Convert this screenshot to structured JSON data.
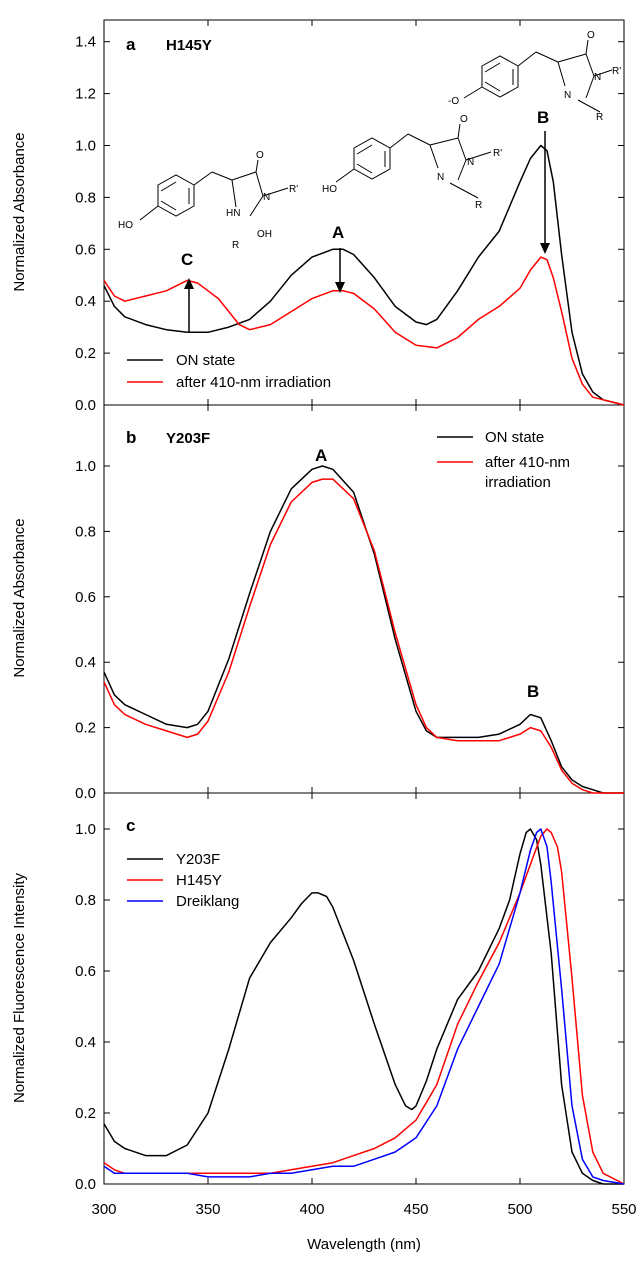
{
  "figure": {
    "xlabel": "Wavelength (nm)",
    "xticks": [
      "300",
      "350",
      "400",
      "450",
      "500",
      "550"
    ]
  },
  "chart_data": [
    {
      "type": "line",
      "panel": "a",
      "title": "H145Y",
      "ylabel": "Normalized Absorbance",
      "xlim": [
        300,
        550
      ],
      "ylim": [
        0,
        1.45
      ],
      "yticks": [
        "0.0",
        "0.2",
        "0.4",
        "0.6",
        "0.8",
        "1.0",
        "1.2",
        "1.4"
      ],
      "legend": "bottom-left",
      "series": [
        {
          "name": "ON state",
          "color": "#000000",
          "x": [
            300,
            305,
            310,
            320,
            330,
            340,
            350,
            360,
            370,
            380,
            390,
            400,
            410,
            415,
            420,
            430,
            440,
            450,
            455,
            460,
            470,
            480,
            490,
            500,
            505,
            510,
            513,
            516,
            520,
            525,
            530,
            535,
            540,
            545,
            550
          ],
          "y": [
            0.46,
            0.38,
            0.34,
            0.31,
            0.29,
            0.28,
            0.28,
            0.3,
            0.33,
            0.4,
            0.5,
            0.57,
            0.6,
            0.6,
            0.58,
            0.49,
            0.38,
            0.32,
            0.31,
            0.33,
            0.44,
            0.57,
            0.67,
            0.86,
            0.95,
            1.0,
            0.98,
            0.86,
            0.58,
            0.28,
            0.12,
            0.05,
            0.02,
            0.01,
            0.0
          ]
        },
        {
          "name": "after 410-nm irradiation",
          "color": "#ff0000",
          "x": [
            300,
            305,
            310,
            320,
            330,
            335,
            340,
            345,
            350,
            355,
            360,
            365,
            370,
            380,
            390,
            400,
            410,
            415,
            420,
            430,
            440,
            450,
            460,
            470,
            480,
            490,
            500,
            505,
            510,
            513,
            516,
            520,
            525,
            530,
            535,
            540,
            545,
            550
          ],
          "y": [
            0.48,
            0.42,
            0.4,
            0.42,
            0.44,
            0.46,
            0.48,
            0.47,
            0.44,
            0.41,
            0.36,
            0.31,
            0.29,
            0.31,
            0.36,
            0.41,
            0.44,
            0.44,
            0.43,
            0.37,
            0.28,
            0.23,
            0.22,
            0.26,
            0.33,
            0.38,
            0.45,
            0.52,
            0.57,
            0.56,
            0.49,
            0.36,
            0.18,
            0.08,
            0.03,
            0.02,
            0.01,
            0.0
          ]
        }
      ],
      "annotations": [
        "C",
        "A",
        "B"
      ]
    },
    {
      "type": "line",
      "panel": "b",
      "title": "Y203F",
      "ylabel": "Normalized Absorbance",
      "xlim": [
        300,
        550
      ],
      "ylim": [
        0,
        1.22
      ],
      "yticks": [
        "0.0",
        "0.2",
        "0.4",
        "0.6",
        "0.8",
        "1.0"
      ],
      "legend": "top-right",
      "series": [
        {
          "name": "ON state",
          "color": "#000000",
          "x": [
            300,
            305,
            310,
            320,
            330,
            340,
            345,
            350,
            360,
            370,
            380,
            390,
            400,
            405,
            410,
            420,
            430,
            440,
            450,
            455,
            460,
            470,
            480,
            490,
            500,
            505,
            510,
            515,
            520,
            525,
            530,
            535,
            540,
            545,
            550
          ],
          "y": [
            0.37,
            0.3,
            0.27,
            0.24,
            0.21,
            0.2,
            0.21,
            0.25,
            0.41,
            0.61,
            0.8,
            0.93,
            0.99,
            1.0,
            0.99,
            0.92,
            0.73,
            0.47,
            0.25,
            0.19,
            0.17,
            0.17,
            0.17,
            0.18,
            0.21,
            0.24,
            0.23,
            0.16,
            0.08,
            0.04,
            0.02,
            0.01,
            0.0,
            0.0,
            0.0
          ]
        },
        {
          "name": "after 410-nm irradiation",
          "color": "#ff0000",
          "x": [
            300,
            305,
            310,
            320,
            330,
            340,
            345,
            350,
            360,
            370,
            380,
            390,
            400,
            405,
            410,
            420,
            430,
            440,
            450,
            455,
            460,
            470,
            480,
            490,
            500,
            505,
            510,
            515,
            520,
            525,
            530,
            535,
            540,
            545,
            550
          ],
          "y": [
            0.34,
            0.27,
            0.24,
            0.21,
            0.19,
            0.17,
            0.18,
            0.22,
            0.37,
            0.57,
            0.76,
            0.89,
            0.95,
            0.96,
            0.96,
            0.9,
            0.74,
            0.49,
            0.27,
            0.2,
            0.17,
            0.16,
            0.16,
            0.16,
            0.18,
            0.2,
            0.19,
            0.14,
            0.07,
            0.03,
            0.01,
            0.0,
            0.0,
            0.0,
            0.0
          ]
        }
      ],
      "annotations": [
        "A",
        "B"
      ]
    },
    {
      "type": "line",
      "panel": "c",
      "ylabel": "Normalized Fluorescence Intensity",
      "xlim": [
        300,
        550
      ],
      "ylim": [
        0,
        1.08
      ],
      "yticks": [
        "0.0",
        "0.2",
        "0.4",
        "0.6",
        "0.8",
        "1.0"
      ],
      "legend": "top-left",
      "series": [
        {
          "name": "Y203F",
          "color": "#000000",
          "x": [
            300,
            305,
            310,
            320,
            325,
            330,
            340,
            350,
            360,
            370,
            380,
            390,
            395,
            400,
            403,
            407,
            410,
            420,
            430,
            440,
            445,
            448,
            450,
            455,
            460,
            470,
            480,
            490,
            495,
            500,
            503,
            505,
            508,
            510,
            515,
            520,
            525,
            530,
            535,
            540,
            550
          ],
          "y": [
            0.17,
            0.12,
            0.1,
            0.08,
            0.08,
            0.08,
            0.11,
            0.2,
            0.38,
            0.58,
            0.68,
            0.75,
            0.79,
            0.82,
            0.82,
            0.81,
            0.78,
            0.63,
            0.45,
            0.28,
            0.22,
            0.21,
            0.22,
            0.29,
            0.38,
            0.52,
            0.6,
            0.72,
            0.8,
            0.93,
            0.99,
            1.0,
            0.97,
            0.9,
            0.65,
            0.28,
            0.09,
            0.03,
            0.01,
            0.0,
            0.0
          ]
        },
        {
          "name": "H145Y",
          "color": "#ff0000",
          "x": [
            300,
            305,
            310,
            320,
            330,
            340,
            350,
            360,
            370,
            380,
            390,
            400,
            410,
            420,
            430,
            440,
            450,
            460,
            470,
            480,
            490,
            500,
            505,
            510,
            513,
            515,
            518,
            520,
            525,
            530,
            535,
            540,
            550
          ],
          "y": [
            0.06,
            0.04,
            0.03,
            0.03,
            0.03,
            0.03,
            0.03,
            0.03,
            0.03,
            0.03,
            0.04,
            0.05,
            0.06,
            0.08,
            0.1,
            0.13,
            0.18,
            0.28,
            0.45,
            0.57,
            0.68,
            0.82,
            0.9,
            0.98,
            1.0,
            0.99,
            0.95,
            0.88,
            0.58,
            0.25,
            0.09,
            0.03,
            0.0
          ]
        },
        {
          "name": "Dreiklang",
          "color": "#0000ff",
          "x": [
            300,
            305,
            310,
            320,
            330,
            340,
            350,
            360,
            370,
            380,
            390,
            400,
            410,
            420,
            430,
            440,
            450,
            460,
            470,
            480,
            490,
            500,
            505,
            508,
            510,
            513,
            515,
            520,
            525,
            530,
            535,
            540,
            550
          ],
          "y": [
            0.05,
            0.03,
            0.03,
            0.03,
            0.03,
            0.03,
            0.02,
            0.02,
            0.02,
            0.03,
            0.03,
            0.04,
            0.05,
            0.05,
            0.07,
            0.09,
            0.13,
            0.22,
            0.38,
            0.5,
            0.62,
            0.82,
            0.94,
            0.99,
            1.0,
            0.95,
            0.85,
            0.55,
            0.22,
            0.07,
            0.02,
            0.01,
            0.0
          ]
        }
      ]
    }
  ],
  "annotations": {
    "a_panel": "a",
    "b_panel": "b",
    "c_panel": "c",
    "A": "A",
    "B": "B",
    "C": "C",
    "b_A": "A",
    "b_B": "B"
  },
  "structures": {
    "s1_ho": "HO",
    "s1_hn": "HN",
    "s1_oh": "OH",
    "s1_r": "R",
    "s1_n": "N",
    "s1_rp": "R'",
    "s1_o": "O",
    "s2_ho": "HO",
    "s2_n": "N",
    "s2_nr": "N",
    "s2_rp": "R'",
    "s2_r": "R",
    "s2_o": "O",
    "s3_o_minus": "-O",
    "s3_n": "N",
    "s3_nr": "N",
    "s3_rp": "R'",
    "s3_r": "R",
    "s3_o": "O"
  }
}
